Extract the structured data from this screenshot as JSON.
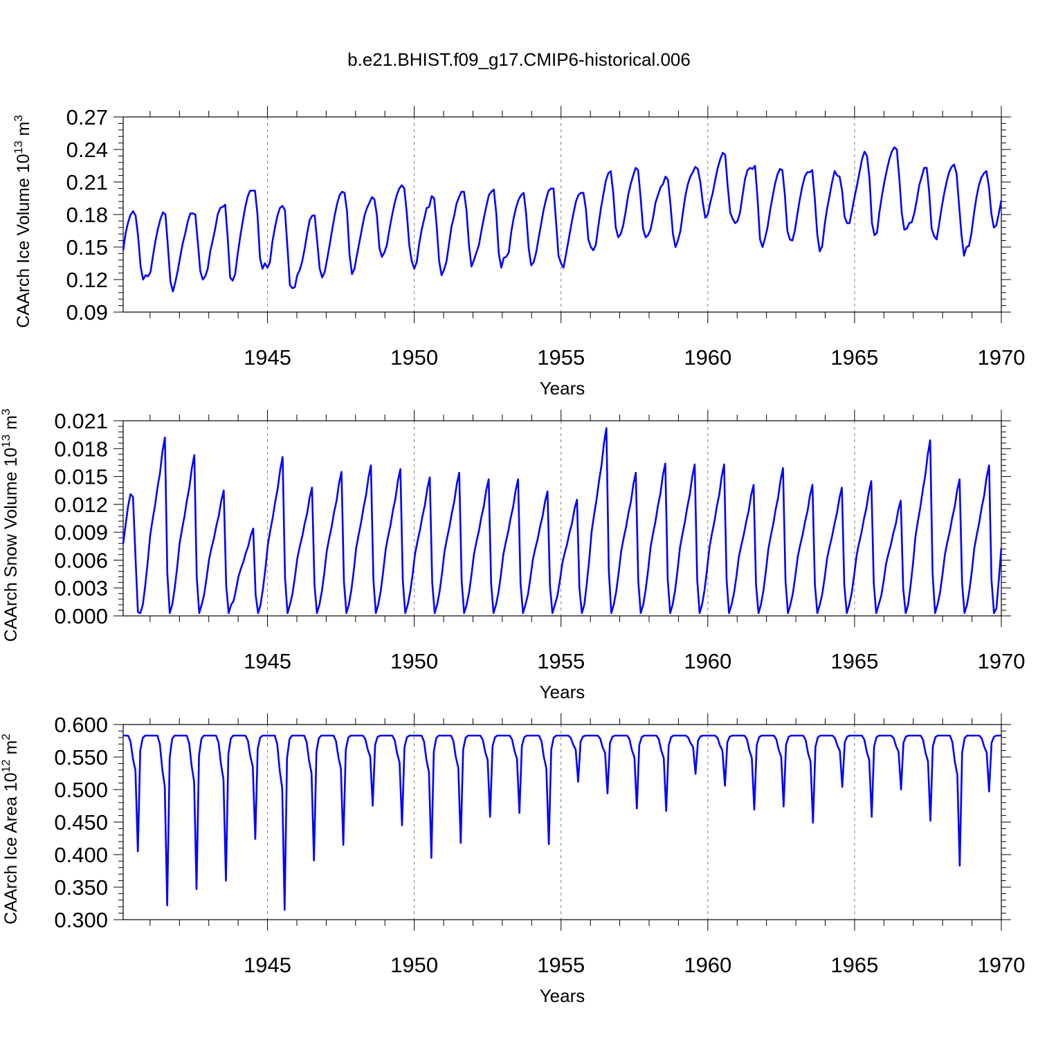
{
  "figure_title": "b.e21.BHIST.f09_g17.CMIP6-historical.006",
  "series_color": "#0000ff",
  "chart_data": [
    {
      "type": "line",
      "title": "b.e21.BHIST.f09_g17.CMIP6-historical.006",
      "ylabel": "CAArch Ice Volume 10",
      "ylabel_exp": "13",
      "ylabel_unit": " m",
      "ylabel_unit_exp": "3",
      "xlabel": "Years",
      "xlim": [
        1940.0833,
        1970
      ],
      "ylim": [
        0.09,
        0.27
      ],
      "x_ticks": [
        1945,
        1950,
        1955,
        1960,
        1965,
        1970
      ],
      "x_tick_labels": [
        "1945",
        "1950",
        "1955",
        "1960",
        "1965",
        "1970"
      ],
      "y_ticks": [
        0.09,
        0.12,
        0.15,
        0.18,
        0.21,
        0.24,
        0.27
      ],
      "y_tick_labels": [
        "0.09",
        "0.12",
        "0.15",
        "0.18",
        "0.21",
        "0.24",
        "0.27"
      ],
      "grid_x": "dashed at major ticks",
      "series": [
        {
          "name": "CAArch Ice Volume",
          "x_start": 1940.0833,
          "x_step": 0.08333,
          "values": [
            0.147,
            0.163,
            0.173,
            0.18,
            0.183,
            0.179,
            0.16,
            0.132,
            0.12,
            0.124,
            0.123,
            0.127,
            0.142,
            0.156,
            0.167,
            0.176,
            0.182,
            0.18,
            0.15,
            0.118,
            0.109,
            0.118,
            0.129,
            0.142,
            0.154,
            0.163,
            0.174,
            0.181,
            0.181,
            0.18,
            0.155,
            0.128,
            0.12,
            0.123,
            0.13,
            0.146,
            0.156,
            0.167,
            0.18,
            0.186,
            0.187,
            0.189,
            0.159,
            0.122,
            0.119,
            0.125,
            0.143,
            0.159,
            0.173,
            0.186,
            0.196,
            0.202,
            0.202,
            0.202,
            0.18,
            0.14,
            0.13,
            0.135,
            0.131,
            0.136,
            0.155,
            0.168,
            0.179,
            0.186,
            0.188,
            0.184,
            0.151,
            0.115,
            0.112,
            0.113,
            0.124,
            0.129,
            0.137,
            0.149,
            0.163,
            0.175,
            0.179,
            0.179,
            0.155,
            0.13,
            0.122,
            0.127,
            0.139,
            0.152,
            0.166,
            0.179,
            0.19,
            0.198,
            0.201,
            0.2,
            0.183,
            0.143,
            0.125,
            0.13,
            0.143,
            0.155,
            0.167,
            0.179,
            0.186,
            0.191,
            0.196,
            0.194,
            0.179,
            0.149,
            0.141,
            0.145,
            0.152,
            0.166,
            0.178,
            0.189,
            0.198,
            0.204,
            0.207,
            0.204,
            0.182,
            0.152,
            0.137,
            0.13,
            0.136,
            0.153,
            0.166,
            0.176,
            0.186,
            0.187,
            0.197,
            0.195,
            0.17,
            0.137,
            0.124,
            0.129,
            0.137,
            0.153,
            0.169,
            0.178,
            0.19,
            0.196,
            0.201,
            0.201,
            0.184,
            0.152,
            0.132,
            0.138,
            0.145,
            0.152,
            0.165,
            0.177,
            0.188,
            0.198,
            0.201,
            0.203,
            0.181,
            0.144,
            0.131,
            0.14,
            0.141,
            0.145,
            0.164,
            0.177,
            0.187,
            0.194,
            0.198,
            0.2,
            0.18,
            0.149,
            0.133,
            0.136,
            0.145,
            0.158,
            0.171,
            0.184,
            0.194,
            0.202,
            0.204,
            0.204,
            0.174,
            0.142,
            0.135,
            0.131,
            0.143,
            0.156,
            0.169,
            0.181,
            0.192,
            0.198,
            0.2,
            0.2,
            0.185,
            0.157,
            0.15,
            0.147,
            0.152,
            0.169,
            0.185,
            0.198,
            0.211,
            0.218,
            0.22,
            0.2,
            0.168,
            0.159,
            0.162,
            0.17,
            0.183,
            0.198,
            0.208,
            0.216,
            0.223,
            0.221,
            0.196,
            0.167,
            0.159,
            0.161,
            0.166,
            0.177,
            0.191,
            0.198,
            0.205,
            0.208,
            0.215,
            0.212,
            0.189,
            0.162,
            0.15,
            0.156,
            0.165,
            0.182,
            0.197,
            0.208,
            0.215,
            0.219,
            0.224,
            0.222,
            0.21,
            0.191,
            0.177,
            0.18,
            0.191,
            0.2,
            0.212,
            0.223,
            0.231,
            0.237,
            0.235,
            0.206,
            0.182,
            0.176,
            0.172,
            0.174,
            0.182,
            0.198,
            0.213,
            0.221,
            0.223,
            0.222,
            0.225,
            0.195,
            0.157,
            0.15,
            0.158,
            0.168,
            0.183,
            0.196,
            0.208,
            0.217,
            0.222,
            0.221,
            0.198,
            0.165,
            0.157,
            0.156,
            0.165,
            0.18,
            0.194,
            0.206,
            0.215,
            0.219,
            0.219,
            0.221,
            0.195,
            0.162,
            0.146,
            0.151,
            0.171,
            0.186,
            0.198,
            0.21,
            0.22,
            0.216,
            0.215,
            0.202,
            0.178,
            0.172,
            0.172,
            0.184,
            0.196,
            0.207,
            0.219,
            0.231,
            0.238,
            0.234,
            0.213,
            0.172,
            0.161,
            0.163,
            0.182,
            0.197,
            0.21,
            0.221,
            0.231,
            0.238,
            0.242,
            0.24,
            0.213,
            0.181,
            0.166,
            0.167,
            0.172,
            0.173,
            0.181,
            0.193,
            0.207,
            0.215,
            0.223,
            0.223,
            0.201,
            0.167,
            0.16,
            0.157,
            0.171,
            0.186,
            0.199,
            0.21,
            0.219,
            0.224,
            0.226,
            0.218,
            0.189,
            0.161,
            0.142,
            0.15,
            0.151,
            0.163,
            0.181,
            0.196,
            0.207,
            0.214,
            0.218,
            0.22,
            0.206,
            0.181,
            0.168,
            0.17,
            0.181,
            0.193
          ]
        }
      ]
    },
    {
      "type": "line",
      "ylabel": "CAArch Snow Volume 10",
      "ylabel_exp": "13",
      "ylabel_unit": " m",
      "ylabel_unit_exp": "3",
      "xlabel": "Years",
      "xlim": [
        1940.0833,
        1970
      ],
      "ylim": [
        0.0,
        0.021
      ],
      "x_ticks": [
        1945,
        1950,
        1955,
        1960,
        1965,
        1970
      ],
      "x_tick_labels": [
        "1945",
        "1950",
        "1955",
        "1960",
        "1965",
        "1970"
      ],
      "y_ticks": [
        0.0,
        0.003,
        0.006,
        0.009,
        0.012,
        0.015,
        0.018,
        0.021
      ],
      "y_tick_labels": [
        "0.000",
        "0.003",
        "0.006",
        "0.009",
        "0.012",
        "0.015",
        "0.018",
        "0.021"
      ],
      "grid_x": "dashed at major ticks",
      "series": [
        {
          "name": "CAArch Snow Volume",
          "peaks": [
            0.0131,
            0.0192,
            0.0173,
            0.0135,
            0.0094,
            0.0171,
            0.0138,
            0.0155,
            0.0162,
            0.0158,
            0.0149,
            0.0154,
            0.0147,
            0.0147,
            0.0134,
            0.0125,
            0.0202,
            0.0154,
            0.0164,
            0.0163,
            0.0163,
            0.0141,
            0.0159,
            0.0141,
            0.0138,
            0.0145,
            0.0124,
            0.0189,
            0.0147,
            0.0162
          ],
          "start_value": 0.0078,
          "end_value": 0.0073,
          "note": "annual cycle: near 0.000 in late summer, rising through winter to each peak, then sharp drop"
        }
      ]
    },
    {
      "type": "line",
      "ylabel": "CAArch Ice Area 10",
      "ylabel_exp": "12",
      "ylabel_unit": " m",
      "ylabel_unit_exp": "2",
      "xlabel": "Years",
      "xlim": [
        1940.0833,
        1970
      ],
      "ylim": [
        0.3,
        0.6
      ],
      "x_ticks": [
        1945,
        1950,
        1955,
        1960,
        1965,
        1970
      ],
      "x_tick_labels": [
        "1945",
        "1950",
        "1955",
        "1960",
        "1965",
        "1970"
      ],
      "y_ticks": [
        0.3,
        0.35,
        0.4,
        0.45,
        0.5,
        0.55,
        0.6
      ],
      "y_tick_labels": [
        "0.300",
        "0.350",
        "0.400",
        "0.450",
        "0.500",
        "0.550",
        "0.600"
      ],
      "grid_x": "dashed at major ticks",
      "series": [
        {
          "name": "CAArch Ice Area",
          "plateau": 0.583,
          "minima": [
            0.405,
            0.322,
            0.347,
            0.36,
            0.424,
            0.315,
            0.391,
            0.415,
            0.475,
            0.445,
            0.395,
            0.418,
            0.458,
            0.464,
            0.416,
            0.512,
            0.494,
            0.471,
            0.467,
            0.524,
            0.506,
            0.469,
            0.474,
            0.449,
            0.504,
            0.458,
            0.5,
            0.452,
            0.383,
            0.497
          ],
          "note": "near-constant plateau ~0.583 with one late-summer minimum per year"
        }
      ]
    }
  ]
}
